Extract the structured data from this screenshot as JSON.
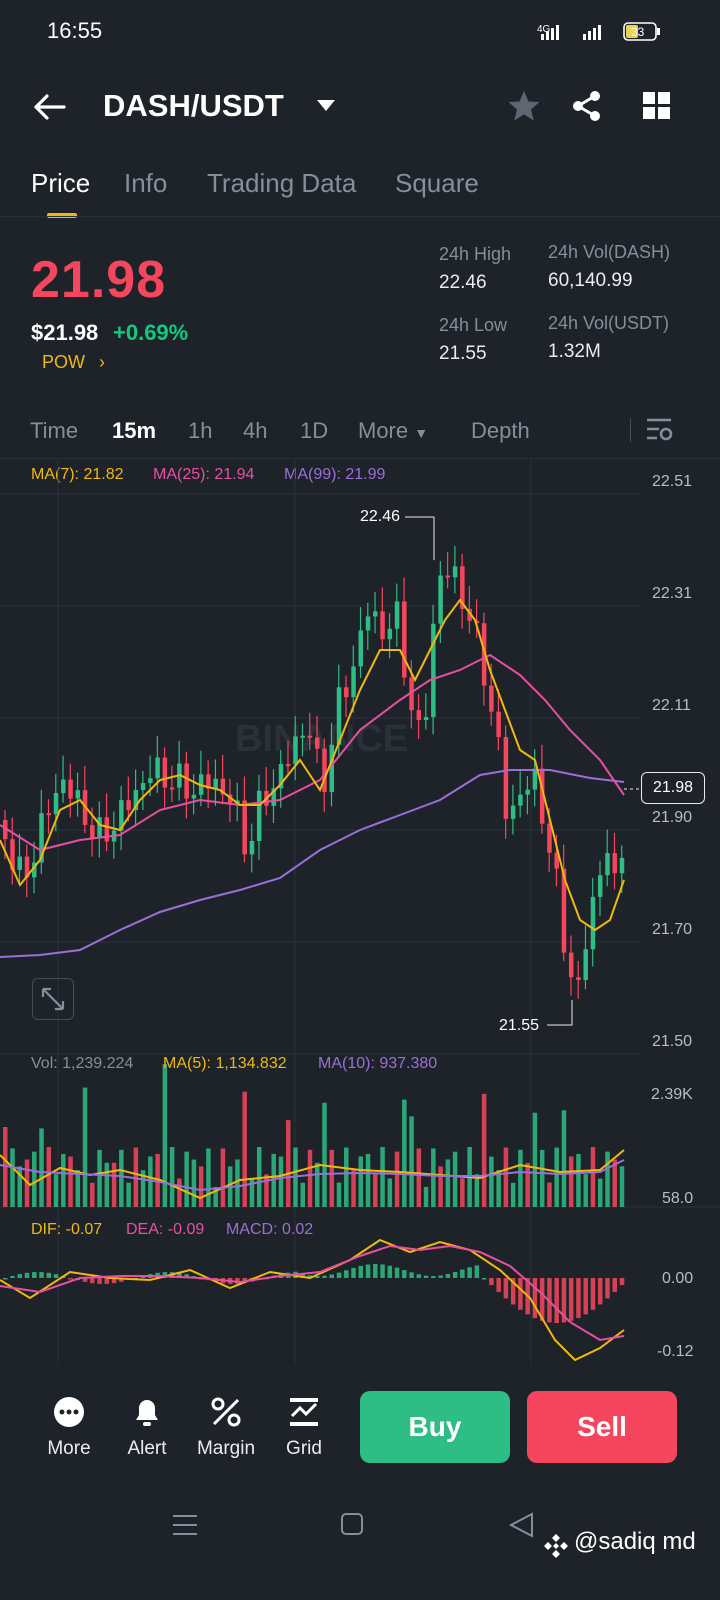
{
  "status": {
    "time": "16:55",
    "network": "4G",
    "battery": "33"
  },
  "header": {
    "pair": "DASH/USDT"
  },
  "tabs": [
    {
      "label": "Price"
    },
    {
      "label": "Info"
    },
    {
      "label": "Trading Data"
    },
    {
      "label": "Square"
    }
  ],
  "ticker": {
    "last_price": "21.98",
    "usd_price": "$21.98",
    "change": "+0.69%",
    "tag": "POW",
    "high_label": "24h High",
    "high": "22.46",
    "vol_base_label": "24h Vol(DASH)",
    "vol_base": "60,140.99",
    "low_label": "24h Low",
    "low": "21.55",
    "vol_quote_label": "24h Vol(USDT)",
    "vol_quote": "1.32M"
  },
  "timeframes": [
    {
      "label": "Time"
    },
    {
      "label": "15m"
    },
    {
      "label": "1h"
    },
    {
      "label": "4h"
    },
    {
      "label": "1D"
    },
    {
      "label": "More"
    },
    {
      "label": "Depth"
    }
  ],
  "chart": {
    "ma7": "MA(7): 21.82",
    "ma25": "MA(25): 21.94",
    "ma99": "MA(99): 21.99",
    "price_axis": [
      "22.51",
      "22.31",
      "22.11",
      "21.90",
      "21.70",
      "21.50"
    ],
    "current_tag": "21.98",
    "high_marker": "22.46",
    "low_marker": "21.55",
    "watermark": "BINANCE",
    "colors": {
      "up": "#2ebd85",
      "down": "#f6465d",
      "ma7": "#f0b90b",
      "ma25": "#e84fa3",
      "ma99": "#9a6fd8"
    }
  },
  "volume": {
    "vol": "Vol: 1,239.224",
    "ma5": "MA(5): 1,134.832",
    "ma10": "MA(10): 937.380",
    "axis_top": "2.39K",
    "axis_bottom": "58.0"
  },
  "macd": {
    "dif": "DIF: -0.07",
    "dea": "DEA: -0.09",
    "macd": "MACD: 0.02",
    "axis_top": "0.00",
    "axis_bottom": "-0.12"
  },
  "bottom": {
    "more": "More",
    "alert": "Alert",
    "margin": "Margin",
    "grid": "Grid",
    "buy": "Buy",
    "sell": "Sell"
  },
  "credit": "@sadiq md"
}
